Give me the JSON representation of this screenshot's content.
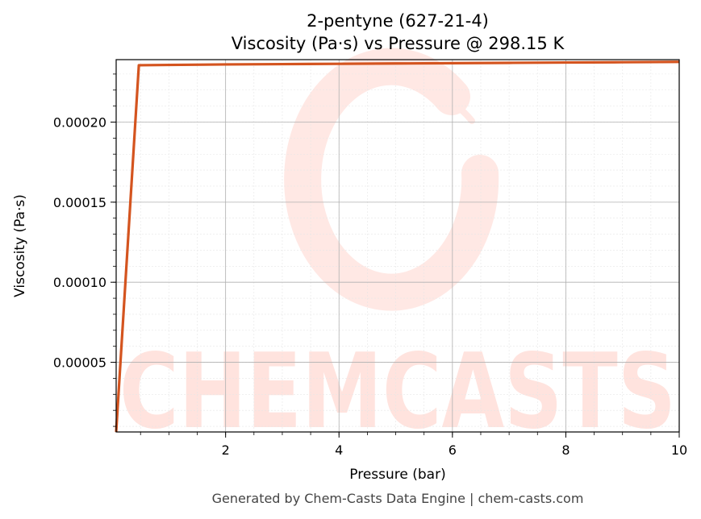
{
  "chart_data": {
    "type": "line",
    "title": "2-pentyne (627-21-4)",
    "subtitle": "Viscosity (Pa·s) vs Pressure @ 298.15 K",
    "xlabel": "Pressure (bar)",
    "ylabel": "Viscosity (Pa·s)",
    "xlim": [
      0.07,
      10
    ],
    "ylim": [
      6.5e-06,
      0.000239
    ],
    "xticks": [
      2,
      4,
      6,
      8,
      10
    ],
    "xtick_labels": [
      "2",
      "4",
      "6",
      "8",
      "10"
    ],
    "yticks": [
      5e-05,
      0.0001,
      0.00015,
      0.0002
    ],
    "ytick_labels": [
      "0.00005",
      "0.00010",
      "0.00015",
      "0.00020"
    ],
    "grid": true,
    "legend": "none",
    "series": [
      {
        "color": "#d4541f",
        "x": [
          0.07,
          0.47,
          1,
          2,
          3,
          4,
          5,
          6,
          7,
          8,
          9,
          10
        ],
        "y": [
          6.5e-06,
          0.0002355,
          0.0002357,
          0.000236,
          0.0002362,
          0.0002364,
          0.0002366,
          0.0002368,
          0.000237,
          0.0002372,
          0.0002374,
          0.0002376
        ]
      }
    ]
  },
  "watermark": {
    "text": "CHEMCASTS",
    "color": "#ffe3de"
  },
  "footer": "Generated by Chem-Casts Data Engine | chem-casts.com"
}
